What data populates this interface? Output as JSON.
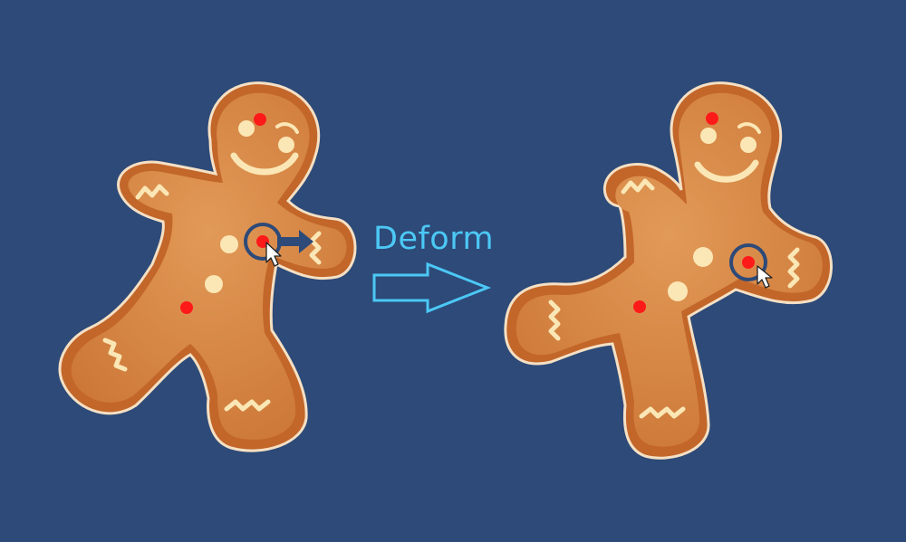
{
  "label": "Deform",
  "colors": {
    "background": "#2d4a78",
    "cookie_outline": "#c66a2c",
    "cookie_fill": "#d98848",
    "cookie_highlight": "#e9a35f",
    "icing": "#fbe7b5",
    "control_point": "#ff1a1a",
    "selection_ring": "#2d4a78",
    "arrow": "#4cc8f5"
  },
  "figures": [
    {
      "name": "original-gingerbread",
      "control_points": 3,
      "selected_point": "chest"
    },
    {
      "name": "deformed-gingerbread",
      "control_points": 3,
      "selected_point": "chest"
    }
  ],
  "icons": [
    "drag-arrow-icon",
    "mouse-cursor-icon",
    "deform-arrow-icon"
  ]
}
